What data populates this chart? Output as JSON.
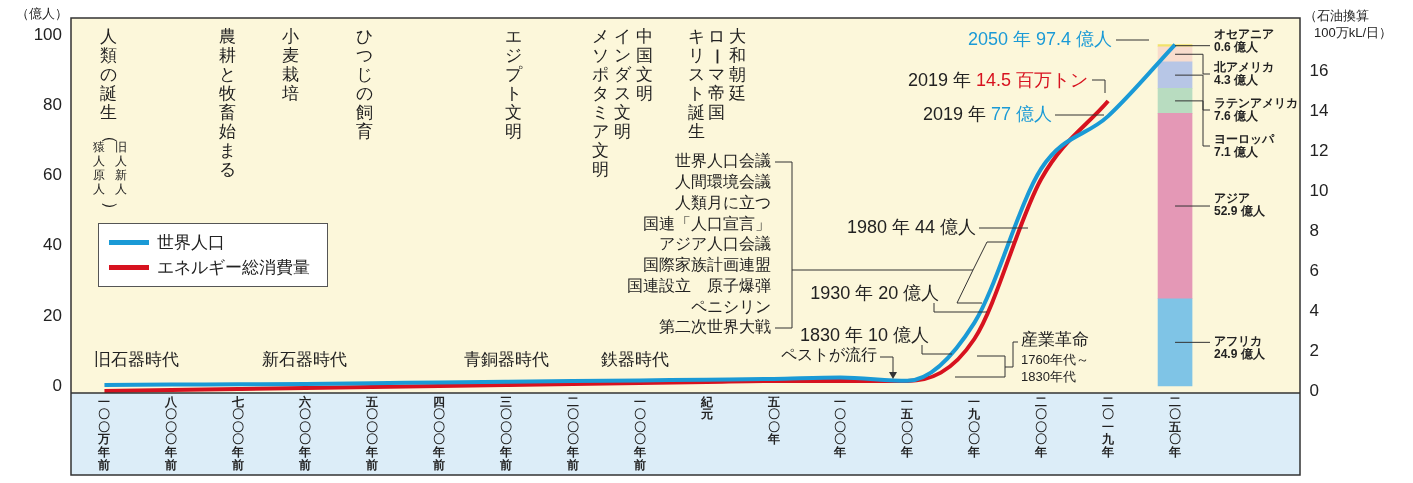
{
  "chart_data": {
    "type": "line",
    "ylabel": "（億人）",
    "y2label": "（石油換算 100万kL/日）",
    "categories": [
      "一〇〇万年前",
      "八〇〇〇年前",
      "七〇〇〇年前",
      "六〇〇〇年前",
      "五〇〇〇年前",
      "四〇〇〇年前",
      "三〇〇〇年前",
      "二〇〇〇年前",
      "一〇〇〇年前",
      "紀元",
      "五〇〇年",
      "一〇〇〇年",
      "一五〇〇年",
      "一九〇〇年",
      "二〇〇〇年",
      "二〇一九年",
      "二〇五〇年"
    ],
    "ylim": [
      -2,
      105
    ],
    "yticks": [
      0,
      20,
      40,
      60,
      80,
      100
    ],
    "y2lim": [
      -0.1,
      18.65
    ],
    "y2ticks": [
      0,
      2,
      4,
      6,
      8,
      10,
      12,
      14,
      16
    ],
    "legend": "left",
    "stacked": true,
    "series": [
      {
        "name": "世界人口",
        "color": "#1a9ad6",
        "values": [
          0.3,
          0.4,
          0.5,
          0.6,
          0.8,
          1,
          1.2,
          1.4,
          1.6,
          1.8,
          2,
          2.4,
          1.5,
          18,
          62,
          77,
          97.4
        ]
      },
      {
        "name": "エネルギー総消費量",
        "axis": "y2",
        "color": "#d7121f",
        "values": [
          0,
          0.05,
          0.1,
          0.15,
          0.2,
          0.25,
          0.3,
          0.35,
          0.4,
          0.45,
          0.5,
          0.5,
          0.5,
          2.6,
          10.6,
          14.5,
          null
        ]
      },
      {
        "name": "アフリカ",
        "type": "bar",
        "color": "#7fc4e6",
        "values": [
          null,
          null,
          null,
          null,
          null,
          null,
          null,
          null,
          null,
          null,
          null,
          null,
          null,
          null,
          null,
          null,
          24.9
        ],
        "value_labels": [
          null,
          null,
          null,
          null,
          null,
          null,
          null,
          null,
          null,
          null,
          null,
          null,
          null,
          null,
          null,
          null,
          "24.9 億人"
        ]
      },
      {
        "name": "アジア",
        "type": "bar",
        "color": "#e498b6",
        "values": [
          null,
          null,
          null,
          null,
          null,
          null,
          null,
          null,
          null,
          null,
          null,
          null,
          null,
          null,
          null,
          null,
          52.9
        ],
        "value_labels": [
          null,
          null,
          null,
          null,
          null,
          null,
          null,
          null,
          null,
          null,
          null,
          null,
          null,
          null,
          null,
          null,
          "52.9 億人"
        ]
      },
      {
        "name": "ヨーロッパ",
        "type": "bar",
        "color": "#b8dcc0",
        "values": [
          null,
          null,
          null,
          null,
          null,
          null,
          null,
          null,
          null,
          null,
          null,
          null,
          null,
          null,
          null,
          null,
          7.1
        ],
        "value_labels": [
          null,
          null,
          null,
          null,
          null,
          null,
          null,
          null,
          null,
          null,
          null,
          null,
          null,
          null,
          null,
          null,
          "7.1 億人"
        ]
      },
      {
        "name": "ラテンアメリカ",
        "type": "bar",
        "color": "#b7c6e6",
        "values": [
          null,
          null,
          null,
          null,
          null,
          null,
          null,
          null,
          null,
          null,
          null,
          null,
          null,
          null,
          null,
          null,
          7.6
        ],
        "value_labels": [
          null,
          null,
          null,
          null,
          null,
          null,
          null,
          null,
          null,
          null,
          null,
          null,
          null,
          null,
          null,
          null,
          "7.6 億人"
        ]
      },
      {
        "name": "北アメリカ",
        "type": "bar",
        "color": "#f8dccd",
        "values": [
          null,
          null,
          null,
          null,
          null,
          null,
          null,
          null,
          null,
          null,
          null,
          null,
          null,
          null,
          null,
          null,
          4.3
        ],
        "value_labels": [
          null,
          null,
          null,
          null,
          null,
          null,
          null,
          null,
          null,
          null,
          null,
          null,
          null,
          null,
          null,
          null,
          "4.3 億人"
        ]
      },
      {
        "name": "オセアニア",
        "type": "bar",
        "color": "#f2e36a",
        "values": [
          null,
          null,
          null,
          null,
          null,
          null,
          null,
          null,
          null,
          null,
          null,
          null,
          null,
          null,
          null,
          null,
          0.6
        ],
        "value_labels": [
          null,
          null,
          null,
          null,
          null,
          null,
          null,
          null,
          null,
          null,
          null,
          null,
          null,
          null,
          null,
          null,
          "0.6 億人"
        ]
      }
    ],
    "annotations": [
      "人類の誕生",
      "（猿人原人旧人新人）",
      "農耕と牧畜始まる",
      "小麦栽培",
      "ひつじの飼育",
      "エジプト文明",
      "メソポタミア文明",
      "インダス文明",
      "中国文明",
      "キリスト誕生",
      "ローマ帝国",
      "大和朝廷",
      "旧石器時代",
      "新石器時代",
      "青銅器時代",
      "鉄器時代",
      "世界人口会議",
      "人間環境会議",
      "人類月に立つ",
      "国連「人口宣言」",
      "アジア人口会議",
      "国際家族計画連盟",
      "国連設立　原子爆弾",
      "ペニシリン",
      "第二次世界大戦",
      "1980 年 44 億人",
      {
        "text": "1930 年 20 億人",
        "x": "一九〇〇年",
        "y": 20
      },
      "1830 年 10 億人",
      "ペストが流行",
      "産業革命",
      "1760年代～",
      "1830年代",
      "2019 年 14.5 百万トン",
      {
        "text": "2019 年 77 億人",
        "x": "二〇一九年",
        "y": 77
      },
      "2050 年 97.4 億人"
    ]
  }
}
